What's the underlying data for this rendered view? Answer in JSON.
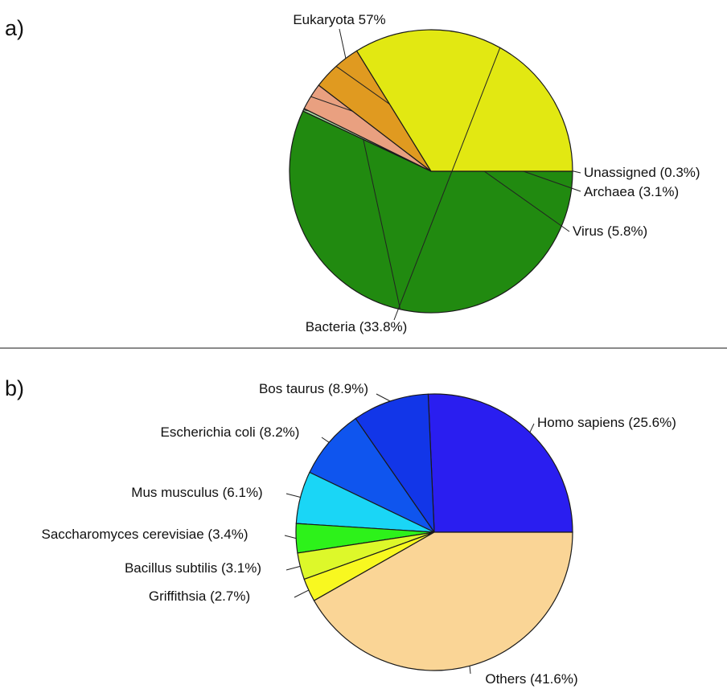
{
  "chart_data": [
    {
      "type": "pie",
      "panel": "a)",
      "slices": [
        {
          "label": "Eukaryota 57%",
          "value": 57.0,
          "color": "#218a10"
        },
        {
          "label": "Unassigned (0.3%)",
          "value": 0.3,
          "color": "#a9d7a0"
        },
        {
          "label": "Archaea (3.1%)",
          "value": 3.1,
          "color": "#e9a080"
        },
        {
          "label": "Virus (5.8%)",
          "value": 5.8,
          "color": "#e09a20"
        },
        {
          "label": "Bacteria (33.8%)",
          "value": 33.8,
          "color": "#e2e812"
        }
      ],
      "start_angle_deg": 0,
      "direction": "clockwise-from-east"
    },
    {
      "type": "pie",
      "panel": "b)",
      "slices": [
        {
          "label": "Homo sapiens (25.6%)",
          "value": 25.6,
          "color": "#2a1ef0"
        },
        {
          "label": "Bos taurus (8.9%)",
          "value": 8.9,
          "color": "#1236e8"
        },
        {
          "label": "Escherichia coli (8.2%)",
          "value": 8.2,
          "color": "#0f55ee"
        },
        {
          "label": "Mus musculus (6.1%)",
          "value": 6.1,
          "color": "#1ad6f6"
        },
        {
          "label": "Saccharomyces cerevisiae (3.4%)",
          "value": 3.4,
          "color": "#2df21a"
        },
        {
          "label": "Bacillus subtilis (3.1%)",
          "value": 3.1,
          "color": "#ddf82a"
        },
        {
          "label": "Griffithsia (2.7%)",
          "value": 2.7,
          "color": "#f8f820"
        },
        {
          "label": "Others (41.6%)",
          "value": 41.6,
          "color": "#fad596"
        }
      ],
      "start_angle_deg": 0,
      "direction": "counterclockwise-from-east"
    }
  ]
}
